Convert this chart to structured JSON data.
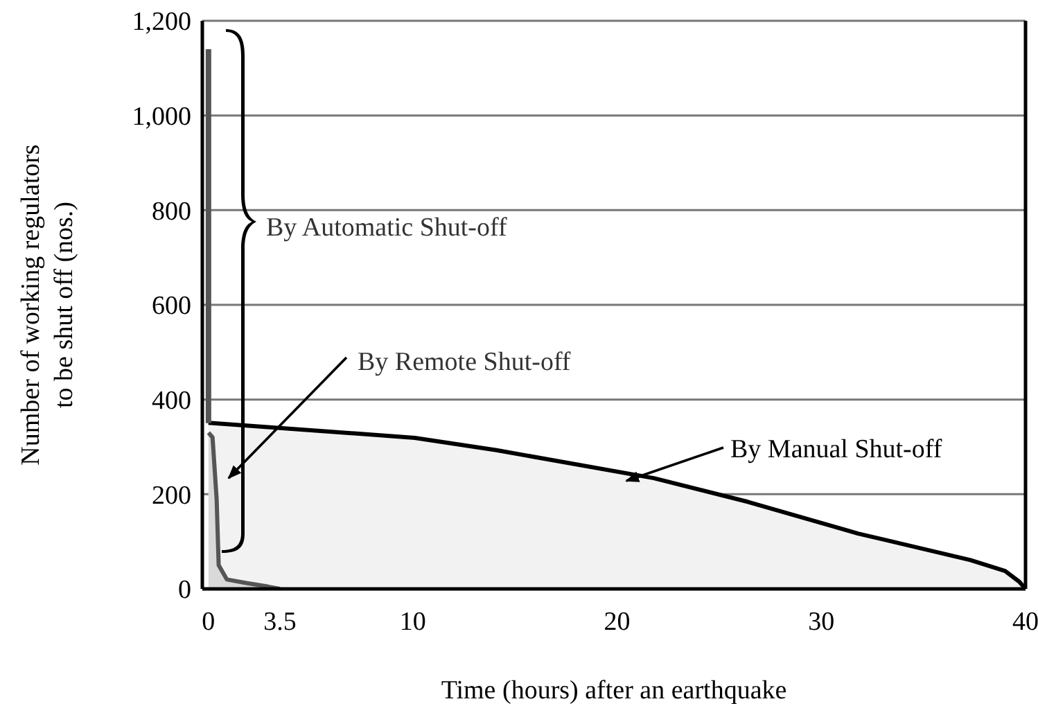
{
  "chart_data": {
    "type": "area",
    "xlabel": "Time (hours) after an earthquake",
    "ylabel": "Number of working regulators to be shut off (nos.)",
    "xlim": [
      -0.3,
      40
    ],
    "xticks": [
      0,
      3.5,
      10,
      20,
      30,
      40
    ],
    "ylim": [
      0,
      1200
    ],
    "yticks": [
      0,
      200,
      400,
      600,
      800,
      {
        "value": 1000,
        "label": "1,000"
      },
      {
        "value": 1200,
        "label": "1,200"
      }
    ],
    "grid": "y",
    "series": [
      {
        "name": "By Manual Shut-off",
        "color": "#000000",
        "x": [
          0,
          10.1,
          14.1,
          21.8,
          26.4,
          31.8,
          37.3,
          39,
          39.7,
          40
        ],
        "values": [
          351,
          319,
          293,
          234,
          184,
          117,
          61,
          38,
          15,
          0
        ]
      },
      {
        "name": "By Remote Shut-off",
        "color": "#555555",
        "x": [
          0,
          0.2,
          0.4,
          0.5,
          0.9,
          1.9,
          2.9,
          3.5
        ],
        "values": [
          330,
          320,
          190,
          50,
          20,
          12,
          5,
          0
        ]
      },
      {
        "name": "By Automatic Shut-off",
        "type": "line",
        "color": "#555555",
        "x": [
          0,
          0
        ],
        "values": [
          1140,
          350
        ]
      }
    ]
  }
}
